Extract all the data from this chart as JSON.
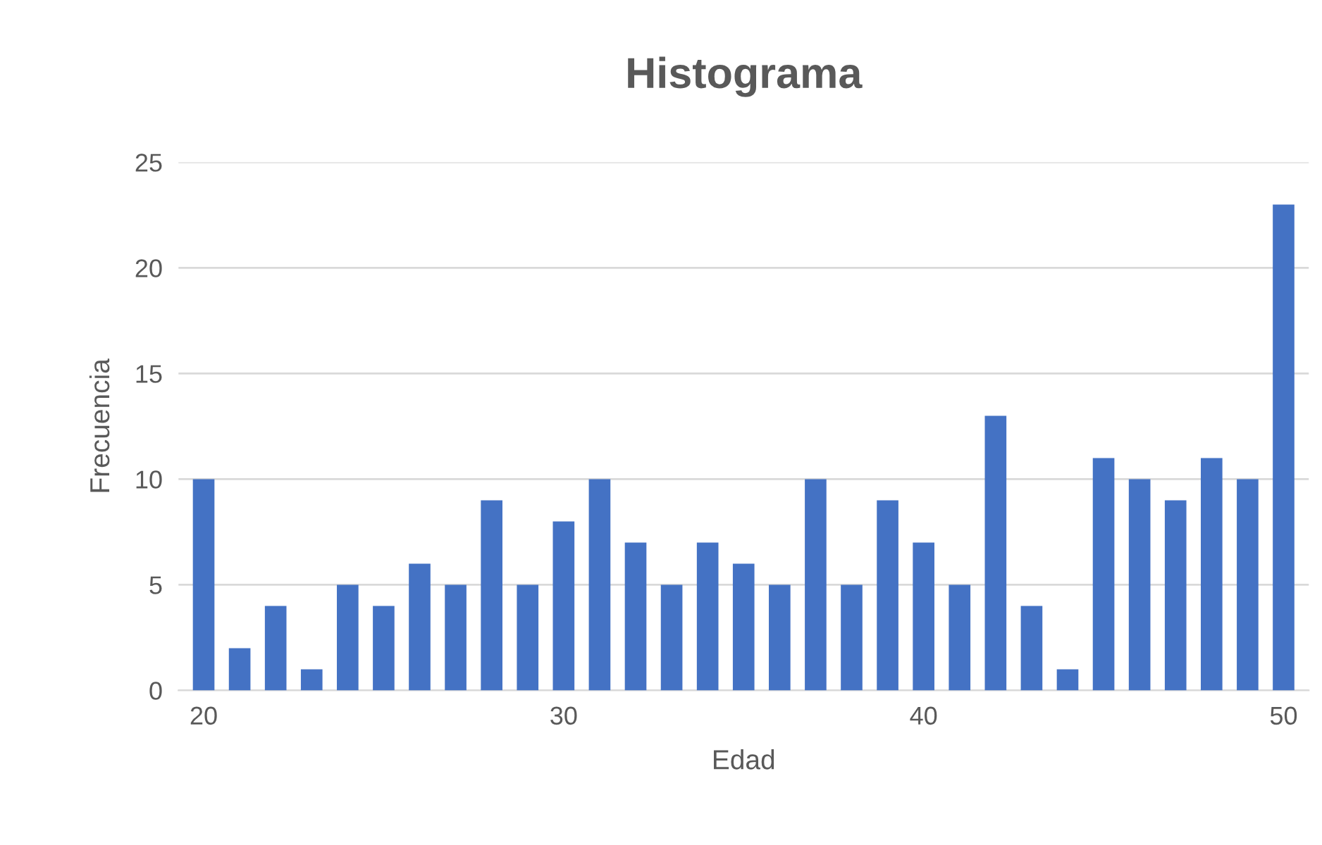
{
  "chart_data": {
    "type": "bar",
    "title": "Histograma",
    "xlabel": "Edad",
    "ylabel": "Frecuencia",
    "x": [
      20,
      21,
      22,
      23,
      24,
      25,
      26,
      27,
      28,
      29,
      30,
      31,
      32,
      33,
      34,
      35,
      36,
      37,
      38,
      39,
      40,
      41,
      42,
      43,
      44,
      45,
      46,
      47,
      48,
      49,
      50
    ],
    "values": [
      10,
      2,
      4,
      1,
      5,
      4,
      6,
      5,
      9,
      5,
      8,
      10,
      7,
      5,
      7,
      6,
      5,
      10,
      5,
      9,
      7,
      5,
      13,
      4,
      1,
      11,
      10,
      9,
      11,
      10,
      23
    ],
    "color": "#4472c4",
    "xlim": [
      19.3,
      50.7
    ],
    "xticks": [
      20,
      30,
      40,
      50
    ],
    "ylim": [
      0,
      25
    ],
    "yticks": [
      0,
      5,
      10,
      15,
      20,
      25
    ],
    "grid": "y",
    "legend": false
  }
}
